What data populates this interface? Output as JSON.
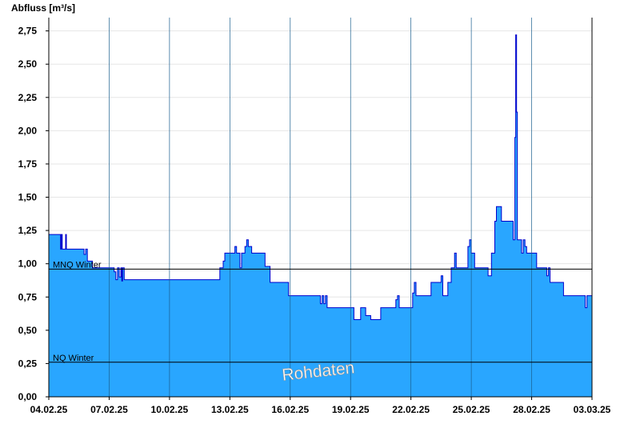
{
  "chart_data": {
    "type": "area",
    "ylabel": "Abfluss [m³/s]",
    "ylim": [
      0,
      2.85
    ],
    "y_ticks": [
      0,
      0.25,
      0.5,
      0.75,
      1.0,
      1.25,
      1.5,
      1.75,
      2.0,
      2.25,
      2.5,
      2.75
    ],
    "y_tick_labels": [
      "0,00",
      "0,25",
      "0,50",
      "0,75",
      "1,00",
      "1,25",
      "1,50",
      "1,75",
      "2,00",
      "2,25",
      "2,50",
      "2,75"
    ],
    "x_range_days": [
      "2025-02-04",
      "2025-03-03"
    ],
    "x_ticks": [
      "2025-02-04",
      "2025-02-07",
      "2025-02-10",
      "2025-02-13",
      "2025-02-16",
      "2025-02-19",
      "2025-02-22",
      "2025-02-25",
      "2025-02-28",
      "2025-03-03"
    ],
    "x_tick_labels": [
      "04.02.25",
      "07.02.25",
      "10.02.25",
      "13.02.25",
      "16.02.25",
      "19.02.25",
      "22.02.25",
      "25.02.25",
      "28.02.25",
      "03.03.25"
    ],
    "grid": true,
    "area_color": "#29a6ff",
    "line_color": "#0000cc",
    "reference_lines": [
      {
        "name": "MNQ Winter",
        "value": 0.96
      },
      {
        "name": "NQ Winter",
        "value": 0.26
      }
    ],
    "watermark": "Rohdaten",
    "series": [
      {
        "values": [
          [
            "2025-02-04 00:00",
            1.22
          ],
          [
            "2025-02-04 14:00",
            1.11
          ],
          [
            "2025-02-04 15:00",
            1.22
          ],
          [
            "2025-02-04 16:00",
            1.11
          ],
          [
            "2025-02-04 20:00",
            1.22
          ],
          [
            "2025-02-04 21:00",
            1.11
          ],
          [
            "2025-02-05 18:00",
            1.07
          ],
          [
            "2025-02-05 20:00",
            1.11
          ],
          [
            "2025-02-05 22:00",
            1.02
          ],
          [
            "2025-02-06 04:00",
            0.97
          ],
          [
            "2025-02-07 06:00",
            0.94
          ],
          [
            "2025-02-07 08:00",
            0.88
          ],
          [
            "2025-02-07 10:00",
            0.97
          ],
          [
            "2025-02-07 12:00",
            0.9
          ],
          [
            "2025-02-07 14:00",
            0.97
          ],
          [
            "2025-02-07 15:00",
            0.87
          ],
          [
            "2025-02-07 16:00",
            0.97
          ],
          [
            "2025-02-07 18:00",
            0.88
          ],
          [
            "2025-02-08 00:00",
            0.88
          ],
          [
            "2025-02-12 12:00",
            0.97
          ],
          [
            "2025-02-12 16:00",
            1.02
          ],
          [
            "2025-02-12 18:00",
            1.08
          ],
          [
            "2025-02-13 06:00",
            1.13
          ],
          [
            "2025-02-13 08:00",
            1.08
          ],
          [
            "2025-02-13 12:00",
            0.97
          ],
          [
            "2025-02-13 14:00",
            1.08
          ],
          [
            "2025-02-13 18:00",
            1.13
          ],
          [
            "2025-02-13 20:00",
            1.18
          ],
          [
            "2025-02-13 22:00",
            1.13
          ],
          [
            "2025-02-14 02:00",
            1.08
          ],
          [
            "2025-02-14 18:00",
            0.98
          ],
          [
            "2025-02-15 00:00",
            0.86
          ],
          [
            "2025-02-15 22:00",
            0.76
          ],
          [
            "2025-02-17 12:00",
            0.7
          ],
          [
            "2025-02-17 14:00",
            0.76
          ],
          [
            "2025-02-17 16:00",
            0.7
          ],
          [
            "2025-02-17 18:00",
            0.76
          ],
          [
            "2025-02-17 20:00",
            0.67
          ],
          [
            "2025-02-19 00:00",
            0.67
          ],
          [
            "2025-02-19 04:00",
            0.58
          ],
          [
            "2025-02-19 12:00",
            0.67
          ],
          [
            "2025-02-19 18:00",
            0.61
          ],
          [
            "2025-02-20 00:00",
            0.58
          ],
          [
            "2025-02-20 12:00",
            0.67
          ],
          [
            "2025-02-21 06:00",
            0.73
          ],
          [
            "2025-02-21 08:00",
            0.76
          ],
          [
            "2025-02-21 10:00",
            0.67
          ],
          [
            "2025-02-21 20:00",
            0.67
          ],
          [
            "2025-02-22 02:00",
            0.78
          ],
          [
            "2025-02-22 04:00",
            0.86
          ],
          [
            "2025-02-22 06:00",
            0.76
          ],
          [
            "2025-02-22 12:00",
            0.76
          ],
          [
            "2025-02-23 00:00",
            0.86
          ],
          [
            "2025-02-23 12:00",
            0.91
          ],
          [
            "2025-02-23 14:00",
            0.76
          ],
          [
            "2025-02-23 20:00",
            0.86
          ],
          [
            "2025-02-24 00:00",
            0.97
          ],
          [
            "2025-02-24 04:00",
            1.08
          ],
          [
            "2025-02-24 06:00",
            0.97
          ],
          [
            "2025-02-24 20:00",
            1.13
          ],
          [
            "2025-02-24 22:00",
            1.18
          ],
          [
            "2025-02-25 00:00",
            1.08
          ],
          [
            "2025-02-25 04:00",
            0.97
          ],
          [
            "2025-02-25 20:00",
            0.91
          ],
          [
            "2025-02-26 00:00",
            1.08
          ],
          [
            "2025-02-26 04:00",
            1.32
          ],
          [
            "2025-02-26 06:00",
            1.43
          ],
          [
            "2025-02-26 12:00",
            1.32
          ],
          [
            "2025-02-27 00:00",
            1.32
          ],
          [
            "2025-02-27 02:00",
            1.18
          ],
          [
            "2025-02-27 04:00",
            1.95
          ],
          [
            "2025-02-27 05:00",
            2.72
          ],
          [
            "2025-02-27 06:00",
            2.14
          ],
          [
            "2025-02-27 07:00",
            1.18
          ],
          [
            "2025-02-27 12:00",
            1.08
          ],
          [
            "2025-02-27 14:00",
            1.18
          ],
          [
            "2025-02-27 16:00",
            1.13
          ],
          [
            "2025-02-27 18:00",
            1.08
          ],
          [
            "2025-02-28 06:00",
            0.97
          ],
          [
            "2025-02-28 18:00",
            0.91
          ],
          [
            "2025-02-28 20:00",
            0.97
          ],
          [
            "2025-02-28 22:00",
            0.86
          ],
          [
            "2025-03-01 10:00",
            0.86
          ],
          [
            "2025-03-01 14:00",
            0.76
          ],
          [
            "2025-03-02 14:00",
            0.76
          ],
          [
            "2025-03-02 16:00",
            0.67
          ],
          [
            "2025-03-02 18:00",
            0.76
          ],
          [
            "2025-03-02 22:00",
            0.76
          ],
          [
            "2025-03-03 00:00",
            0.67
          ]
        ]
      }
    ]
  }
}
